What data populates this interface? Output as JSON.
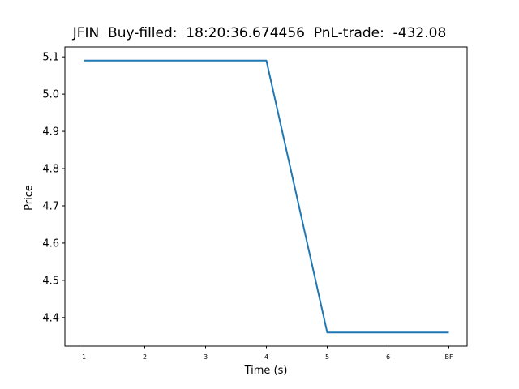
{
  "chart_data": {
    "type": "line",
    "title": "JFIN  Buy-filled:  18:20:36.674456  PnL-trade:  -432.08",
    "xlabel": "Time (s)",
    "ylabel": "Price",
    "categories": [
      "1",
      "2",
      "3",
      "4",
      "5",
      "6",
      "BF"
    ],
    "series": [
      {
        "values": [
          5.09,
          5.09,
          5.09,
          5.09,
          4.36,
          4.36,
          4.36
        ],
        "color": "#1f77b4"
      }
    ],
    "yticks": [
      4.4,
      4.5,
      4.6,
      4.7,
      4.8,
      4.9,
      5.0,
      5.1
    ],
    "ytick_labels": [
      "4.4",
      "4.5",
      "4.6",
      "4.7",
      "4.8",
      "4.9",
      "5.0",
      "5.1"
    ],
    "ylim": [
      4.3235,
      5.1265
    ],
    "grid": false,
    "legend": "none"
  }
}
